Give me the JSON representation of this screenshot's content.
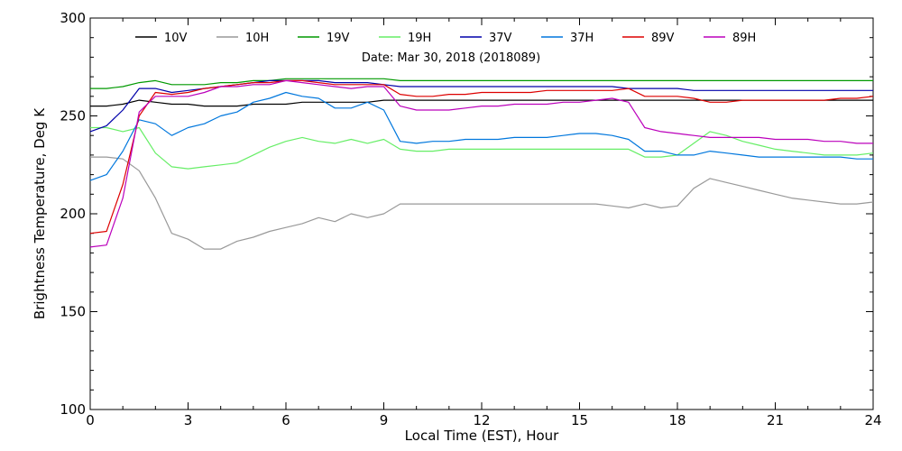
{
  "chart_data": {
    "type": "line",
    "annotation": "Date: Mar 30, 2018 (2018089)",
    "xlabel": "Local Time (EST), Hour",
    "ylabel": "Brightness Temperature, Deg K",
    "xlim": [
      0,
      24
    ],
    "ylim": [
      100,
      300
    ],
    "x_ticks": [
      0,
      3,
      6,
      9,
      12,
      15,
      18,
      21,
      24
    ],
    "y_ticks": [
      100,
      150,
      200,
      250,
      300
    ],
    "grid": false,
    "legend_position": "top",
    "x": [
      0,
      0.5,
      1,
      1.5,
      2,
      2.5,
      3,
      3.5,
      4,
      4.5,
      5,
      5.5,
      6,
      6.5,
      7,
      7.5,
      8,
      8.5,
      9,
      9.5,
      10,
      10.5,
      11,
      11.5,
      12,
      12.5,
      13,
      13.5,
      14,
      14.5,
      15,
      15.5,
      16,
      16.5,
      17,
      17.5,
      18,
      18.5,
      19,
      19.5,
      20,
      20.5,
      21,
      21.5,
      22,
      22.5,
      23,
      23.5,
      24
    ],
    "series": [
      {
        "name": "10V",
        "color": "#000000",
        "values": [
          255,
          255,
          256,
          258,
          257,
          256,
          256,
          255,
          255,
          255,
          256,
          256,
          256,
          257,
          257,
          257,
          257,
          257,
          258,
          258,
          258,
          258,
          258,
          258,
          258,
          258,
          258,
          258,
          258,
          258,
          258,
          258,
          258,
          258,
          258,
          258,
          258,
          258,
          258,
          258,
          258,
          258,
          258,
          258,
          258,
          258,
          258,
          258,
          258
        ]
      },
      {
        "name": "10H",
        "color": "#999999",
        "values": [
          229,
          229,
          228,
          222,
          208,
          190,
          187,
          182,
          182,
          186,
          188,
          191,
          193,
          195,
          198,
          196,
          200,
          198,
          200,
          205,
          205,
          205,
          205,
          205,
          205,
          205,
          205,
          205,
          205,
          205,
          205,
          205,
          204,
          203,
          205,
          203,
          204,
          213,
          218,
          216,
          214,
          212,
          210,
          208,
          207,
          206,
          205,
          205,
          206
        ]
      },
      {
        "name": "19V",
        "color": "#009900",
        "values": [
          264,
          264,
          265,
          267,
          268,
          266,
          266,
          266,
          267,
          267,
          268,
          268,
          269,
          269,
          269,
          269,
          269,
          269,
          269,
          268,
          268,
          268,
          268,
          268,
          268,
          268,
          268,
          268,
          268,
          268,
          268,
          268,
          268,
          268,
          268,
          268,
          268,
          268,
          268,
          268,
          268,
          268,
          268,
          268,
          268,
          268,
          268,
          268,
          268
        ]
      },
      {
        "name": "19H",
        "color": "#66ee66",
        "values": [
          244,
          244,
          242,
          244,
          231,
          224,
          223,
          224,
          225,
          226,
          230,
          234,
          237,
          239,
          237,
          236,
          238,
          236,
          238,
          233,
          232,
          232,
          233,
          233,
          233,
          233,
          233,
          233,
          233,
          233,
          233,
          233,
          233,
          233,
          229,
          229,
          230,
          236,
          242,
          240,
          237,
          235,
          233,
          232,
          231,
          230,
          230,
          230,
          231
        ]
      },
      {
        "name": "37V",
        "color": "#0000aa",
        "values": [
          242,
          245,
          253,
          264,
          264,
          262,
          263,
          264,
          265,
          266,
          267,
          268,
          268,
          268,
          268,
          267,
          267,
          267,
          266,
          265,
          265,
          265,
          265,
          265,
          265,
          265,
          265,
          265,
          265,
          265,
          265,
          265,
          265,
          264,
          264,
          264,
          264,
          263,
          263,
          263,
          263,
          263,
          263,
          263,
          263,
          263,
          263,
          263,
          263
        ]
      },
      {
        "name": "37H",
        "color": "#0077dd",
        "values": [
          217,
          220,
          232,
          248,
          246,
          240,
          244,
          246,
          250,
          252,
          257,
          259,
          262,
          260,
          259,
          254,
          254,
          257,
          253,
          237,
          236,
          237,
          237,
          238,
          238,
          238,
          239,
          239,
          239,
          240,
          241,
          241,
          240,
          238,
          232,
          232,
          230,
          230,
          232,
          231,
          230,
          229,
          229,
          229,
          229,
          229,
          229,
          228,
          228
        ]
      },
      {
        "name": "89V",
        "color": "#dd0000",
        "values": [
          190,
          191,
          215,
          250,
          262,
          261,
          262,
          264,
          265,
          266,
          267,
          267,
          268,
          268,
          267,
          266,
          266,
          266,
          266,
          261,
          260,
          260,
          261,
          261,
          262,
          262,
          262,
          262,
          263,
          263,
          263,
          263,
          263,
          264,
          260,
          260,
          260,
          259,
          257,
          257,
          258,
          258,
          258,
          258,
          258,
          258,
          259,
          259,
          260
        ]
      },
      {
        "name": "89H",
        "color": "#bb00bb",
        "values": [
          183,
          184,
          208,
          252,
          260,
          260,
          260,
          262,
          265,
          265,
          266,
          266,
          268,
          267,
          266,
          265,
          264,
          265,
          265,
          255,
          253,
          253,
          253,
          254,
          255,
          255,
          256,
          256,
          256,
          257,
          257,
          258,
          259,
          257,
          244,
          242,
          241,
          240,
          239,
          239,
          239,
          239,
          238,
          238,
          238,
          237,
          237,
          236,
          236
        ]
      }
    ]
  }
}
